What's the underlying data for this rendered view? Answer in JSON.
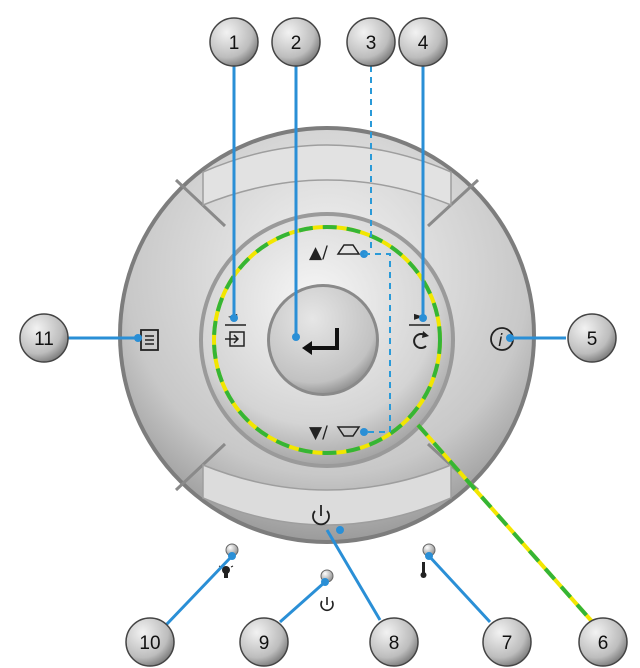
{
  "callouts": [
    {
      "id": "1",
      "label": "1"
    },
    {
      "id": "2",
      "label": "2"
    },
    {
      "id": "3",
      "label": "3"
    },
    {
      "id": "4",
      "label": "4"
    },
    {
      "id": "5",
      "label": "5"
    },
    {
      "id": "6",
      "label": "6"
    },
    {
      "id": "7",
      "label": "7"
    },
    {
      "id": "8",
      "label": "8"
    },
    {
      "id": "9",
      "label": "9"
    },
    {
      "id": "10",
      "label": "10"
    },
    {
      "id": "11",
      "label": "11"
    }
  ],
  "keypad": {
    "up_symbol": "▲/",
    "down_symbol": "▼/",
    "left_arrow": "◄",
    "right_arrow": "►",
    "info_symbol": "i",
    "enter_icon": "enter-arrow-icon",
    "menu_icon": "menu-list-icon",
    "power_icon": "power-icon",
    "source_icon": "source-input-icon",
    "resync_icon": "resync-icon",
    "keystone_up_icon": "keystone-up-trapezoid-icon",
    "keystone_down_icon": "keystone-down-trapezoid-icon"
  },
  "indicators": {
    "lamp_icon": "lamp-bulb-icon",
    "power_led_icon": "power-icon",
    "temp_icon": "thermometer-icon"
  },
  "colors": {
    "ring_yellow": "#f2e600",
    "ring_green": "#35b535",
    "dash_blue": "#2a9ad8",
    "leader_blue": "#2a8fd6"
  }
}
